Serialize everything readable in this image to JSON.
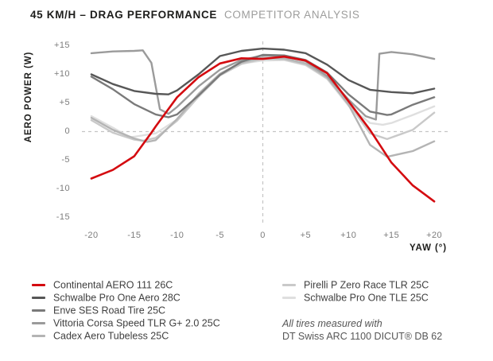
{
  "title": {
    "primary": "45 KM/H – DRAG PERFORMANCE",
    "secondary": "COMPETITOR ANALYSIS"
  },
  "chart_data": {
    "type": "line",
    "title": "45 KM/H – DRAG PERFORMANCE COMPETITOR ANALYSIS",
    "xlabel": "YAW (°)",
    "ylabel": "AERO POWER (W)",
    "xlim": [
      -20,
      20
    ],
    "ylim": [
      -15,
      15
    ],
    "grid": "dashed zero cross-hair only",
    "legend_position": "below, two columns",
    "x_ticks": [
      {
        "v": -20,
        "label": "-20"
      },
      {
        "v": -15,
        "label": "-15"
      },
      {
        "v": -10,
        "label": "-10"
      },
      {
        "v": -5,
        "label": "-5"
      },
      {
        "v": 0,
        "label": "0"
      },
      {
        "v": 5,
        "label": "+5"
      },
      {
        "v": 10,
        "label": "+10"
      },
      {
        "v": 15,
        "label": "+15"
      },
      {
        "v": 20,
        "label": "+20"
      }
    ],
    "y_ticks": [
      {
        "v": 15,
        "label": "+15"
      },
      {
        "v": 10,
        "label": "+10"
      },
      {
        "v": 5,
        "label": "+5"
      },
      {
        "v": 0,
        "label": "0"
      },
      {
        "v": -5,
        "label": "-5"
      },
      {
        "v": -10,
        "label": "-10"
      },
      {
        "v": -15,
        "label": "-15"
      }
    ],
    "series": [
      {
        "name": "Continental AERO 111 26C",
        "color": "#d40b10",
        "points": [
          [
            -20,
            -8.2
          ],
          [
            -17.5,
            -6.7
          ],
          [
            -15,
            -4.3
          ],
          [
            -13,
            -0.2
          ],
          [
            -12.5,
            0.9
          ],
          [
            -10,
            6.0
          ],
          [
            -7.5,
            9.5
          ],
          [
            -5,
            11.9
          ],
          [
            -2.5,
            12.8
          ],
          [
            0,
            12.7
          ],
          [
            2.5,
            13.1
          ],
          [
            5,
            12.4
          ],
          [
            7.5,
            10.2
          ],
          [
            10,
            5.3
          ],
          [
            12.5,
            0.3
          ],
          [
            15,
            -5.4
          ],
          [
            17.5,
            -9.4
          ],
          [
            20,
            -12.2
          ]
        ]
      },
      {
        "name": "Schwalbe Pro One Aero 28C",
        "color": "#575757",
        "points": [
          [
            -20,
            10.0
          ],
          [
            -17.5,
            8.3
          ],
          [
            -15,
            7.1
          ],
          [
            -12.5,
            6.6
          ],
          [
            -11,
            6.5
          ],
          [
            -10,
            7.2
          ],
          [
            -7.5,
            10.0
          ],
          [
            -5,
            13.2
          ],
          [
            -2.5,
            14.1
          ],
          [
            0,
            14.5
          ],
          [
            2.5,
            14.3
          ],
          [
            5,
            13.7
          ],
          [
            7.5,
            11.7
          ],
          [
            10,
            9.0
          ],
          [
            12.5,
            7.3
          ],
          [
            15,
            6.9
          ],
          [
            17.5,
            6.7
          ],
          [
            20,
            7.5
          ]
        ]
      },
      {
        "name": "Enve SES Road Tire 25C",
        "color": "#7a7a7a",
        "points": [
          [
            -20,
            9.6
          ],
          [
            -17.5,
            7.4
          ],
          [
            -15,
            4.8
          ],
          [
            -12.5,
            3.0
          ],
          [
            -11,
            2.5
          ],
          [
            -10,
            3.0
          ],
          [
            -7.5,
            6.3
          ],
          [
            -5,
            9.9
          ],
          [
            -2.5,
            12.2
          ],
          [
            0,
            13.4
          ],
          [
            2.5,
            13.3
          ],
          [
            5,
            12.5
          ],
          [
            7.5,
            10.3
          ],
          [
            10,
            6.5
          ],
          [
            12.5,
            3.5
          ],
          [
            14.5,
            2.9
          ],
          [
            15,
            3.0
          ],
          [
            17.5,
            4.7
          ],
          [
            20,
            6.0
          ]
        ]
      },
      {
        "name": "Vittoria Corsa Speed TLR G+ 2.0 25C",
        "color": "#9b9b9b",
        "points": [
          [
            -20,
            13.7
          ],
          [
            -17.5,
            14.0
          ],
          [
            -15,
            14.1
          ],
          [
            -14,
            14.2
          ],
          [
            -13,
            12.0
          ],
          [
            -12,
            3.9
          ],
          [
            -11,
            3.1
          ],
          [
            -10,
            4.3
          ],
          [
            -7.5,
            7.9
          ],
          [
            -5,
            10.8
          ],
          [
            -2.5,
            12.5
          ],
          [
            0,
            13.3
          ],
          [
            2.5,
            13.2
          ],
          [
            5,
            12.3
          ],
          [
            7.5,
            9.7
          ],
          [
            10,
            5.6
          ],
          [
            12,
            2.7
          ],
          [
            13.2,
            2.1
          ],
          [
            13.6,
            13.6
          ],
          [
            15,
            13.9
          ],
          [
            17.5,
            13.5
          ],
          [
            20,
            12.7
          ]
        ]
      },
      {
        "name": "Cadex Aero Tubeless 25C",
        "color": "#b4b4b4",
        "points": [
          [
            -20,
            2.4
          ],
          [
            -17.5,
            0.3
          ],
          [
            -15,
            -1.2
          ],
          [
            -13.5,
            -1.8
          ],
          [
            -12.5,
            -1.5
          ],
          [
            -10,
            2.2
          ],
          [
            -7.5,
            6.6
          ],
          [
            -5,
            10.1
          ],
          [
            -2.5,
            12.1
          ],
          [
            0,
            12.9
          ],
          [
            2.5,
            12.8
          ],
          [
            5,
            11.9
          ],
          [
            7.5,
            9.5
          ],
          [
            10,
            4.7
          ],
          [
            12.5,
            -2.3
          ],
          [
            14.5,
            -4.4
          ],
          [
            17.5,
            -3.4
          ],
          [
            20,
            -1.7
          ]
        ]
      },
      {
        "name": "Pirelli P Zero Race TLR 25C",
        "color": "#c9c9c9",
        "points": [
          [
            -20,
            2.0
          ],
          [
            -17.5,
            -0.2
          ],
          [
            -15,
            -1.4
          ],
          [
            -14,
            -1.6
          ],
          [
            -12.5,
            -1.1
          ],
          [
            -10,
            1.9
          ],
          [
            -7.5,
            6.1
          ],
          [
            -5,
            9.8
          ],
          [
            -2.5,
            11.8
          ],
          [
            0,
            12.7
          ],
          [
            2.5,
            12.6
          ],
          [
            5,
            11.7
          ],
          [
            7.5,
            9.3
          ],
          [
            10,
            4.9
          ],
          [
            12.5,
            -0.3
          ],
          [
            14.5,
            -1.3
          ],
          [
            17.5,
            0.3
          ],
          [
            20,
            3.3
          ]
        ]
      },
      {
        "name": "Schwalbe Pro One TLE 25C",
        "color": "#dfdfdf",
        "points": [
          [
            -20,
            2.7
          ],
          [
            -17.5,
            0.7
          ],
          [
            -15.5,
            -1.0
          ],
          [
            -15,
            -0.9
          ],
          [
            -12.5,
            -0.3
          ],
          [
            -10,
            2.1
          ],
          [
            -7.5,
            6.3
          ],
          [
            -5,
            9.9
          ],
          [
            -2.5,
            11.9
          ],
          [
            0,
            12.4
          ],
          [
            2.5,
            12.5
          ],
          [
            5,
            11.6
          ],
          [
            7.5,
            9.2
          ],
          [
            10,
            4.5
          ],
          [
            12.5,
            1.5
          ],
          [
            14,
            1.2
          ],
          [
            15,
            1.5
          ],
          [
            17.5,
            2.9
          ],
          [
            20,
            4.4
          ]
        ]
      }
    ]
  },
  "legend": {
    "left_column_series": [
      0,
      1,
      2,
      3,
      4
    ],
    "right_column_series": [
      5,
      6
    ]
  },
  "footnote": {
    "line1": "All tires measured with",
    "line2": "DT Swiss ARC 1100 DICUT® DB 62"
  },
  "style_colors": {
    "title_primary": "#1d1d1b",
    "title_secondary": "#9d9d9c",
    "tick_label": "#7c7c7c",
    "dashed_guide": "#c4c4c4",
    "legend_text": "#3f3f3f",
    "footnote_text": "#565656"
  }
}
